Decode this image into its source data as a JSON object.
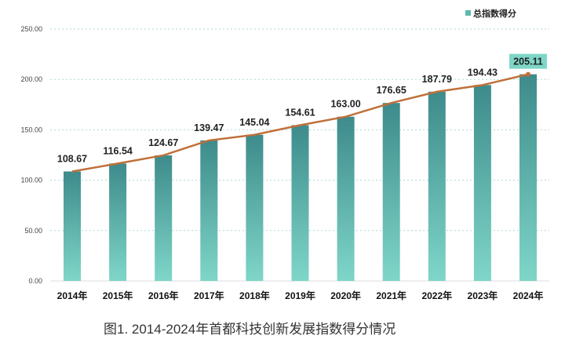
{
  "chart_data": {
    "type": "bar",
    "title": "图1. 2014-2024年首都科技创新发展指数得分情况",
    "categories": [
      "2014年",
      "2015年",
      "2016年",
      "2017年",
      "2018年",
      "2019年",
      "2020年",
      "2021年",
      "2022年",
      "2023年",
      "2024年"
    ],
    "series": [
      {
        "name": "总指数得分",
        "values": [
          108.67,
          116.54,
          124.67,
          139.47,
          145.04,
          154.61,
          163.0,
          176.65,
          187.79,
          194.43,
          205.11
        ],
        "type": "bar+line"
      }
    ],
    "data_labels": [
      "108.67",
      "116.54",
      "124.67",
      "139.47",
      "145.04",
      "154.61",
      "163.00",
      "176.65",
      "187.79",
      "194.43",
      "205.11"
    ],
    "yticks": [
      "0.00",
      "50.00",
      "100.00",
      "150.00",
      "200.00",
      "250.00"
    ],
    "ylim": [
      0,
      250
    ],
    "xlabel": "",
    "ylabel": "",
    "grid": true,
    "legend": "top-right",
    "colors": {
      "bar_top": "#3d8b8b",
      "bar_bottom": "#7fd6c8",
      "line": "#c0703a",
      "highlight": "#7fd6c8"
    }
  }
}
